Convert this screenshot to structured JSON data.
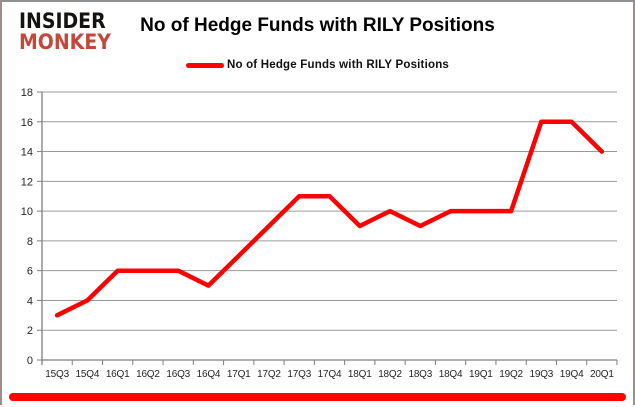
{
  "brand": {
    "line1": "INSIDER",
    "line2": "MONKEY",
    "monkey_color": "#c5473a",
    "insider_color": "#151210"
  },
  "title": "No of Hedge Funds with RILY Positions",
  "legend": {
    "label": "No of Hedge Funds with RILY Positions",
    "line_color": "#ff0000"
  },
  "colors": {
    "line": "#ff0000",
    "grid": "#9a9a9a",
    "axis": "#7f7f7f",
    "bottom_bar": "#ff0202",
    "tick_text": "#262626"
  },
  "chart_data": {
    "type": "line",
    "title": "No of Hedge Funds with RILY Positions",
    "categories": [
      "15Q3",
      "15Q4",
      "16Q1",
      "16Q2",
      "16Q3",
      "16Q4",
      "17Q1",
      "17Q2",
      "17Q3",
      "17Q4",
      "18Q1",
      "18Q2",
      "18Q3",
      "18Q4",
      "19Q1",
      "19Q2",
      "19Q3",
      "19Q4",
      "20Q1"
    ],
    "series": [
      {
        "name": "No of Hedge Funds with RILY Positions",
        "color": "#ff0000",
        "values": [
          3,
          4,
          6,
          6,
          6,
          5,
          7,
          9,
          11,
          11,
          9,
          10,
          9,
          10,
          10,
          10,
          16,
          16,
          14
        ]
      }
    ],
    "xlabel": "",
    "ylabel": "",
    "ylim": [
      0,
      18
    ],
    "ytick_step": 2,
    "grid": true,
    "legend_position": "top-center"
  }
}
